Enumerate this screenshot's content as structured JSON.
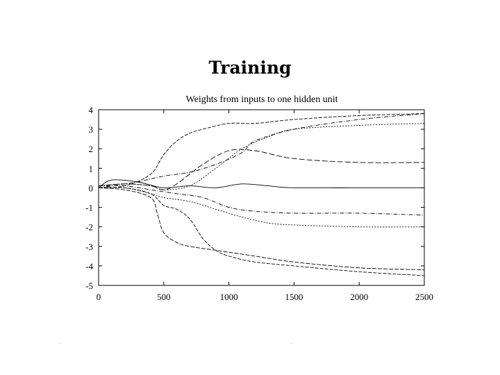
{
  "slide": {
    "title": "Training"
  },
  "chart_data": {
    "type": "line",
    "title": "Weights from inputs to one hidden unit",
    "xlabel": "",
    "ylabel": "",
    "xlim": [
      0,
      2500
    ],
    "ylim": [
      -5,
      4
    ],
    "xticks": [
      0,
      500,
      1000,
      1500,
      2000,
      2500
    ],
    "yticks": [
      4,
      3,
      2,
      1,
      0,
      -1,
      -2,
      -3,
      -4,
      -5
    ],
    "grid": false,
    "series": [
      {
        "style": "5,2",
        "x": [
          0,
          200,
          400,
          500,
          600,
          700,
          800,
          1000,
          1200,
          1500,
          2000,
          2500
        ],
        "y": [
          0.0,
          0.1,
          0.7,
          1.7,
          2.4,
          2.8,
          3.0,
          3.3,
          3.3,
          3.5,
          3.7,
          3.8
        ]
      },
      {
        "style": "6,2,1,2",
        "x": [
          0,
          200,
          300,
          500,
          700,
          900,
          1100,
          1200,
          1500,
          2000,
          2500
        ],
        "y": [
          0.0,
          0.2,
          0.3,
          0.6,
          0.8,
          1.2,
          1.8,
          2.4,
          3.0,
          3.5,
          3.8
        ]
      },
      {
        "style": "2,2",
        "x": [
          0,
          200,
          400,
          500,
          700,
          900,
          1100,
          1300,
          1500,
          2000,
          2500
        ],
        "y": [
          0.1,
          0.2,
          0.1,
          -0.1,
          0.1,
          1.0,
          2.0,
          2.6,
          3.0,
          3.2,
          3.3
        ]
      },
      {
        "style": "8,3",
        "x": [
          0,
          200,
          400,
          500,
          600,
          800,
          1000,
          1200,
          1500,
          2000,
          2500
        ],
        "y": [
          0.1,
          0.2,
          0.1,
          -0.1,
          0.2,
          1.2,
          1.9,
          1.9,
          1.5,
          1.3,
          1.3
        ]
      },
      {
        "style": "",
        "x": [
          0,
          100,
          300,
          500,
          700,
          900,
          1100,
          1300,
          1500,
          2000,
          2500
        ],
        "y": [
          0.0,
          0.4,
          0.3,
          0.0,
          0.1,
          0.0,
          0.2,
          0.1,
          0.0,
          0.0,
          0.0
        ]
      },
      {
        "style": "6,2,1,2",
        "x": [
          0,
          200,
          400,
          500,
          600,
          800,
          1000,
          1200,
          1500,
          2000,
          2500
        ],
        "y": [
          0.1,
          0.1,
          -0.1,
          -0.2,
          -0.3,
          -0.5,
          -1.0,
          -1.2,
          -1.3,
          -1.3,
          -1.4
        ]
      },
      {
        "style": "2,2",
        "x": [
          0,
          200,
          400,
          500,
          700,
          900,
          1100,
          1300,
          1500,
          2000,
          2500
        ],
        "y": [
          0.0,
          0.0,
          -0.3,
          -0.5,
          -0.7,
          -1.1,
          -1.5,
          -1.8,
          -1.9,
          -2.0,
          -2.0
        ]
      },
      {
        "style": "5,2",
        "x": [
          0,
          200,
          400,
          500,
          600,
          700,
          800,
          900,
          1000,
          1200,
          1500,
          2000,
          2500
        ],
        "y": [
          0.0,
          0.0,
          -0.3,
          -0.9,
          -1.1,
          -1.6,
          -2.6,
          -3.2,
          -3.5,
          -3.8,
          -4.0,
          -4.3,
          -4.5
        ]
      },
      {
        "style": "6,2",
        "x": [
          0,
          200,
          400,
          450,
          500,
          600,
          700,
          900,
          1200,
          1500,
          2000,
          2500
        ],
        "y": [
          0.0,
          -0.1,
          -0.5,
          -1.3,
          -2.3,
          -2.8,
          -3.0,
          -3.2,
          -3.5,
          -3.8,
          -4.1,
          -4.2
        ]
      }
    ]
  }
}
